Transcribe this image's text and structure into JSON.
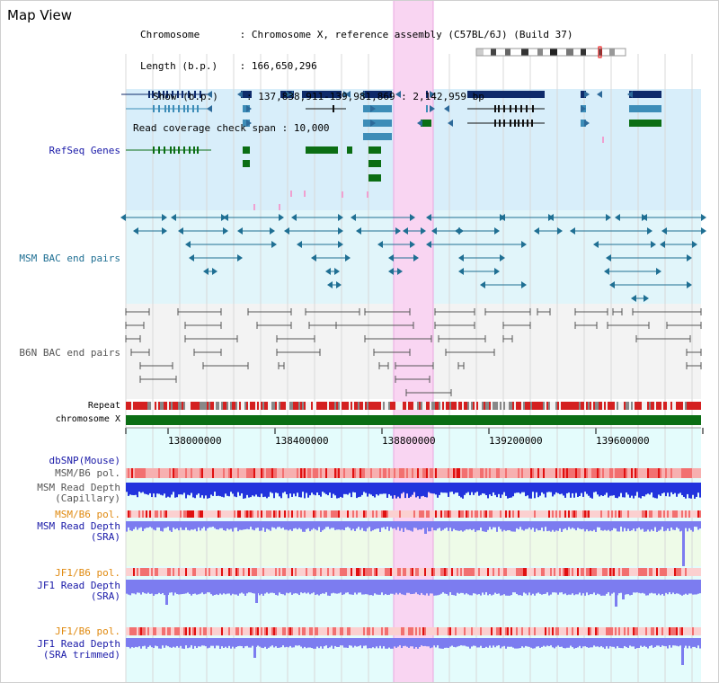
{
  "title": "Map View",
  "info": {
    "chromosome_key": "Chromosome",
    "chromosome_val": ": Chromosome X, reference assembly (C57BL/6J) (Build 37)",
    "length_key": "Length (b.p.)",
    "length_val": ": 166,650,296",
    "show_key": "Show (b.p.)",
    "show_val": ": 137,838,911-139,981,869 : 2,142,959 bp",
    "span_key": "Read coverage check span",
    "span_val": ": 10,000"
  },
  "tracks": {
    "refseq": "RefSeq Genes",
    "msm_bac": "MSM BAC end pairs",
    "b6n_bac": "B6N BAC end pairs",
    "repeat": "Repeat",
    "chromosome": "chromosome X",
    "dbsnp": "dbSNP(Mouse)",
    "msm_b6_pol": "MSM/B6 pol.",
    "msm_depth_cap_1": "MSM Read Depth",
    "msm_depth_cap_2": "(Capillary)",
    "msm_b6_pol_2": "MSM/B6 pol.",
    "msm_depth_sra_1": "MSM Read Depth",
    "msm_depth_sra_2": "(SRA)",
    "jf1_b6_pol": "JF1/B6 pol.",
    "jf1_depth_sra_1": "JF1 Read Depth",
    "jf1_depth_sra_2": "(SRA)",
    "jf1_b6_pol_2": "JF1/B6 pol.",
    "jf1_depth_trim_1": "JF1 Read Depth",
    "jf1_depth_trim_2": "(SRA trimmed)"
  },
  "axis": {
    "ticks": [
      "138000000",
      "138400000",
      "138800000",
      "139200000",
      "139600000"
    ]
  },
  "colors": {
    "highlight": "#f9d5f2",
    "refseq_bg": "#d8eefa",
    "msm_bg": "#e1f5fa",
    "b6n_bg": "#f3f3f3",
    "lower_bg": "#e4fcfc",
    "gene_navy": "#0e2a6a",
    "gene_teal": "#3d8db8",
    "gene_green": "#0b6e14",
    "bac_teal": "#1f6f93",
    "bac_grey": "#555555",
    "depth_blue": "#2233dd",
    "depth_violet": "#7c7cf0",
    "pol_red": "#f27070",
    "label_blue": "#1a1aa8",
    "label_orange": "#e08a10"
  }
}
